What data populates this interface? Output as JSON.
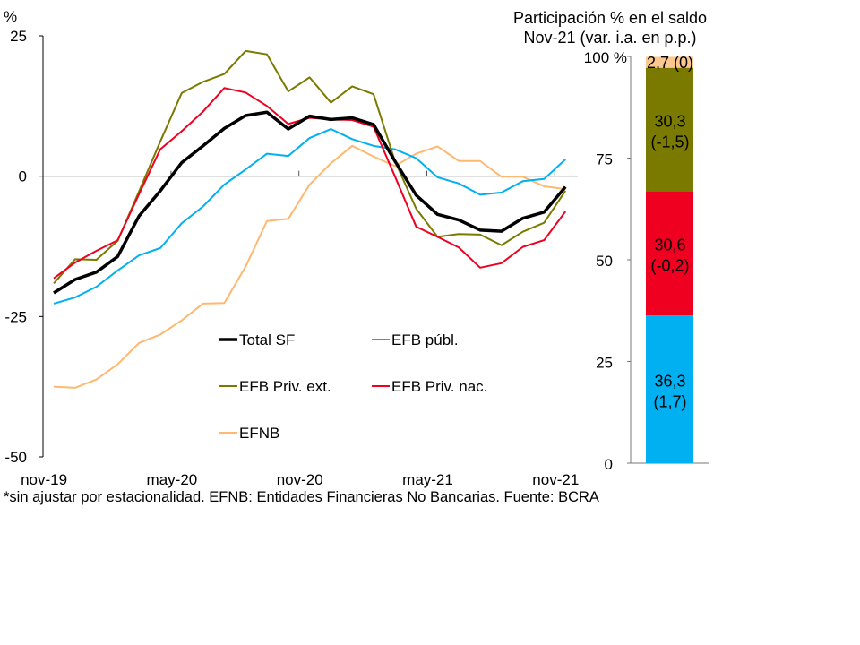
{
  "chart_data": [
    {
      "type": "line",
      "ylabel": "%",
      "ylim": [
        -50,
        25
      ],
      "yticks": [
        25,
        0,
        -25,
        -50
      ],
      "x": [
        "nov-19",
        "dic-19",
        "ene-20",
        "feb-20",
        "mar-20",
        "abr-20",
        "may-20",
        "jun-20",
        "jul-20",
        "ago-20",
        "sep-20",
        "oct-20",
        "nov-20",
        "dic-20",
        "ene-21",
        "feb-21",
        "mar-21",
        "abr-21",
        "may-21",
        "jun-21",
        "jul-21",
        "ago-21",
        "sep-21",
        "oct-21",
        "nov-21"
      ],
      "xtick_labels": [
        "nov-19",
        "may-20",
        "nov-20",
        "may-21",
        "nov-21"
      ],
      "xtick_index": [
        0,
        6,
        12,
        18,
        24
      ],
      "legend_placement": "center-bottom",
      "series": [
        {
          "name": "Total SF",
          "color": "#000000",
          "values": [
            -20.8,
            -18.4,
            -17.1,
            -14.3,
            -7.1,
            -2.6,
            2.4,
            5.4,
            8.5,
            10.8,
            11.4,
            8.4,
            10.7,
            10.1,
            10.4,
            9.2,
            2.7,
            -3.4,
            -6.8,
            -7.8,
            -9.6,
            -9.8,
            -7.5,
            -6.4,
            -1.9
          ]
        },
        {
          "name": "EFB públ.",
          "color": "#00b0f0",
          "values": [
            -22.7,
            -21.6,
            -19.7,
            -16.8,
            -14.1,
            -12.8,
            -8.4,
            -5.4,
            -1.5,
            1.2,
            4.0,
            3.6,
            6.8,
            8.4,
            6.6,
            5.4,
            4.8,
            3.2,
            -0.2,
            -1.3,
            -3.3,
            -2.9,
            -0.9,
            -0.5,
            3.0
          ]
        },
        {
          "name": "EFB Priv. ext.",
          "color": "#7a7a00",
          "values": [
            -19.1,
            -14.8,
            -14.9,
            -11.5,
            -2.7,
            6.2,
            14.8,
            16.8,
            18.2,
            22.3,
            21.7,
            15.1,
            17.6,
            13.1,
            16.0,
            14.6,
            2.7,
            -5.8,
            -10.8,
            -10.3,
            -10.4,
            -12.3,
            -9.9,
            -8.3,
            -2.6
          ]
        },
        {
          "name": "EFB Priv. nac.",
          "color": "#f00020",
          "values": [
            -18.2,
            -15.4,
            -13.3,
            -11.4,
            -3.2,
            4.8,
            8.0,
            11.5,
            15.7,
            14.9,
            12.5,
            9.3,
            10.4,
            10.1,
            10.0,
            8.8,
            0.0,
            -9.0,
            -10.8,
            -12.7,
            -16.3,
            -15.5,
            -12.6,
            -11.4,
            -6.3
          ]
        },
        {
          "name": "EFNB",
          "color": "#ffb870",
          "values": [
            -37.5,
            -37.7,
            -36.2,
            -33.5,
            -29.7,
            -28.2,
            -25.7,
            -22.7,
            -22.6,
            -16.1,
            -8.0,
            -7.6,
            -1.5,
            2.3,
            5.4,
            3.5,
            1.8,
            4.0,
            5.3,
            2.7,
            2.7,
            -0.1,
            -0.1,
            -1.8,
            -2.3
          ]
        }
      ]
    },
    {
      "type": "bar",
      "stacked": true,
      "title": "Participación % en el saldo",
      "subtitle": "Nov-21 (var. i.a. en p.p.)",
      "ylim": [
        0,
        100
      ],
      "yticks": [
        "0",
        "25",
        "50",
        "75",
        "100 %"
      ],
      "segments": [
        {
          "series": "EFB públ.",
          "value": 36.3,
          "change": 1.7,
          "label": "36,3",
          "label2": "(1,7)",
          "color": "#00b0f0",
          "text_color": "#ffffff"
        },
        {
          "series": "EFB Priv. nac.",
          "value": 30.6,
          "change": -0.2,
          "label": "30,6",
          "label2": "(-0,2)",
          "color": "#f00020",
          "text_color": "#ffffff"
        },
        {
          "series": "EFB Priv. ext.",
          "value": 30.3,
          "change": -1.5,
          "label": "30,3",
          "label2": "(-1,5)",
          "color": "#7a7a00",
          "text_color": "#ffffff"
        },
        {
          "series": "EFNB",
          "value": 2.7,
          "change": 0,
          "label": "2,7 (0)",
          "label2": "",
          "color": "#fcc890",
          "text_color": "#000000"
        }
      ]
    }
  ],
  "footnote": "*sin ajustar por estacionalidad. EFNB: Entidades Financieras No Bancarias. Fuente: BCRA"
}
